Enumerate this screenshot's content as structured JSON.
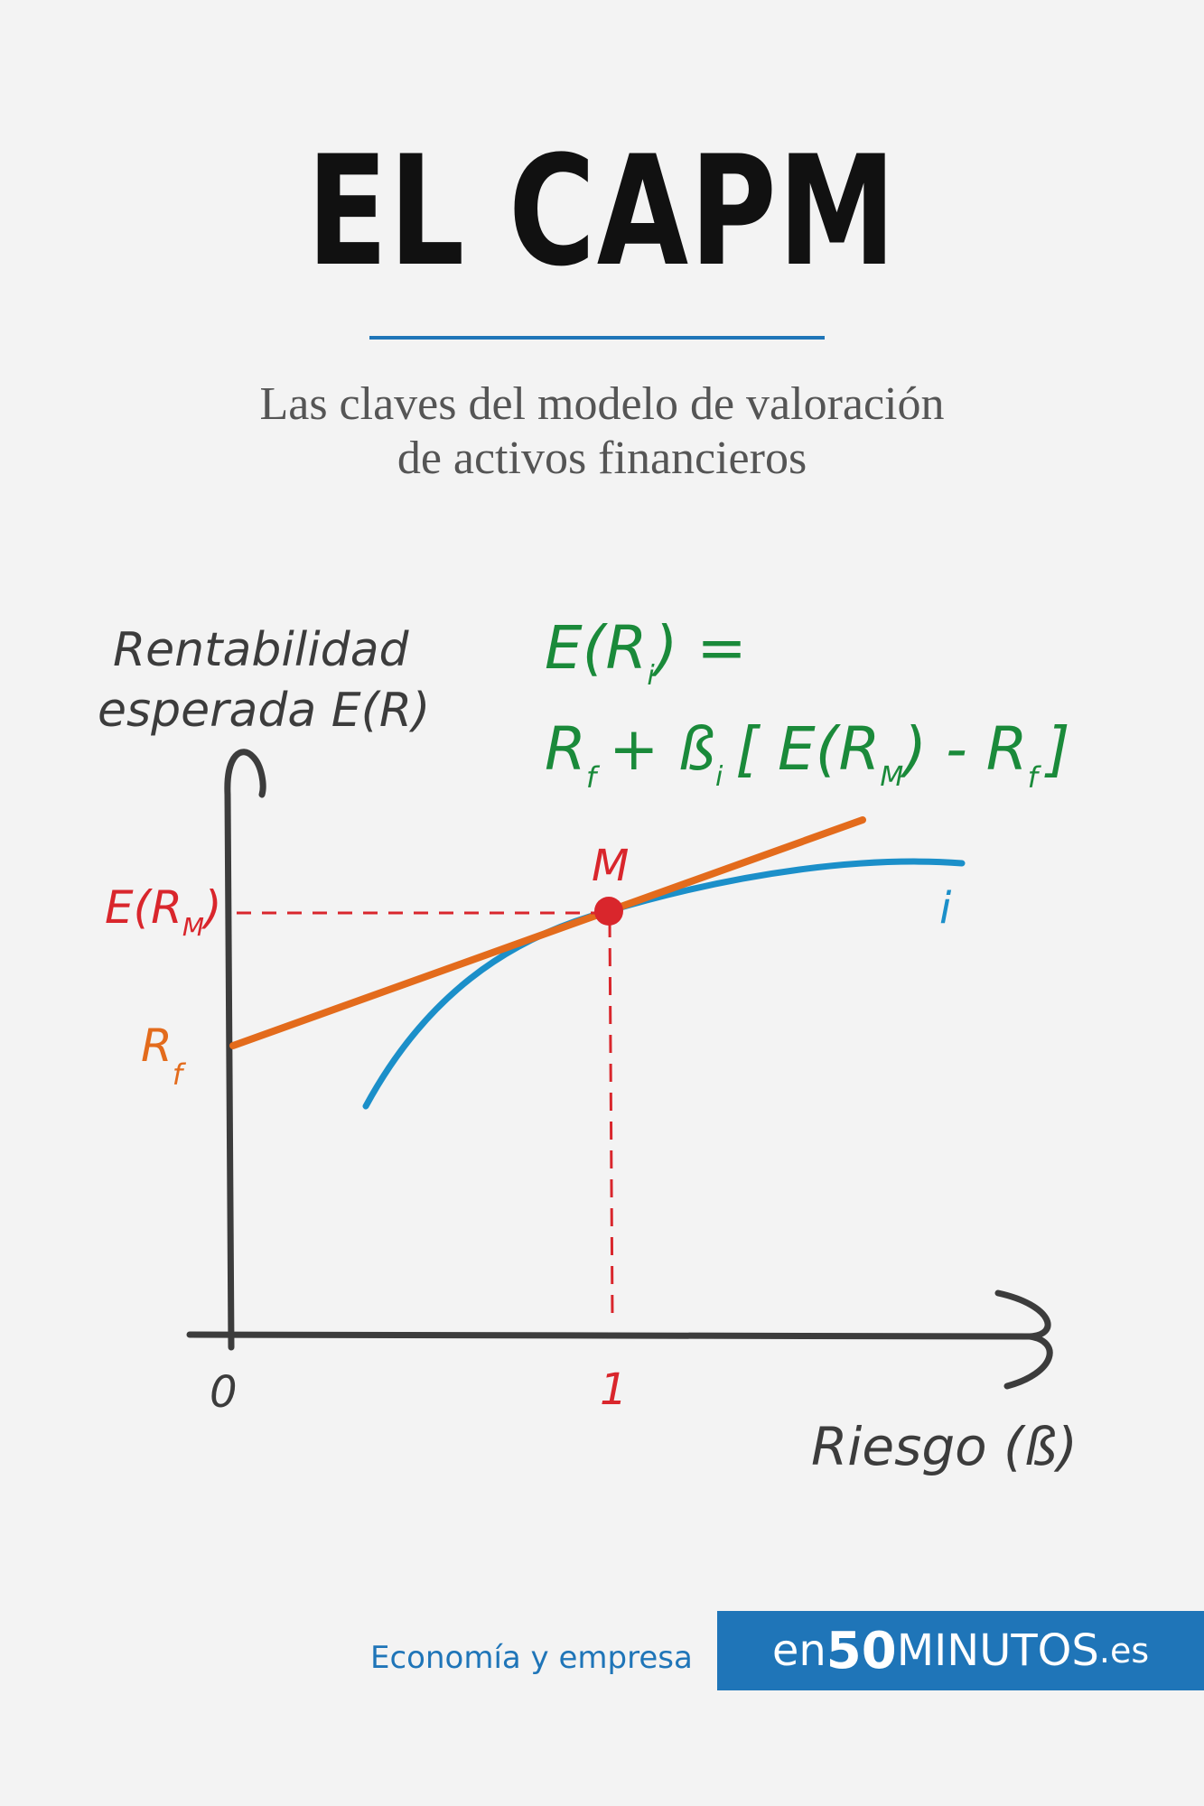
{
  "cover": {
    "title": "EL CAPM",
    "subtitle_line1": "Las claves del modelo de valoración",
    "subtitle_line2": "de activos financieros"
  },
  "diagram": {
    "y_axis_label_line1": "Rentabilidad",
    "y_axis_label_line2": "esperada E(R)",
    "x_axis_label": "Riesgo (ß)",
    "origin_tick": "0",
    "market_beta_tick": "1",
    "market_return_label": "E(R",
    "market_return_sub": "M",
    "market_return_close": ")",
    "risk_free_label": "R",
    "risk_free_sub": "f",
    "market_point_label": "M",
    "asset_curve_label": "i",
    "formula_line1": "E(R",
    "formula_line1_sub": "i",
    "formula_line1_end": ") =",
    "formula_rf": "R",
    "formula_rf_sub": "f",
    "formula_plus_beta": "+ ß",
    "formula_beta_sub": "i",
    "formula_bracket_open": "[ E(R",
    "formula_m_sub": "M",
    "formula_minus": ") - R",
    "formula_rf2_sub": "f",
    "formula_bracket_close": "]",
    "colors": {
      "axis": "#3c3c3c",
      "sml_line": "#e36b1c",
      "asset_curve": "#1b8fc9",
      "market": "#d9262c",
      "formula": "#1a8a3a",
      "label_text": "#3c3c3c"
    }
  },
  "footer": {
    "category": "Economía y empresa",
    "brand_prefix": "en",
    "brand_number": "50",
    "brand_word": "MINUTOS",
    "brand_domain": ".es"
  }
}
